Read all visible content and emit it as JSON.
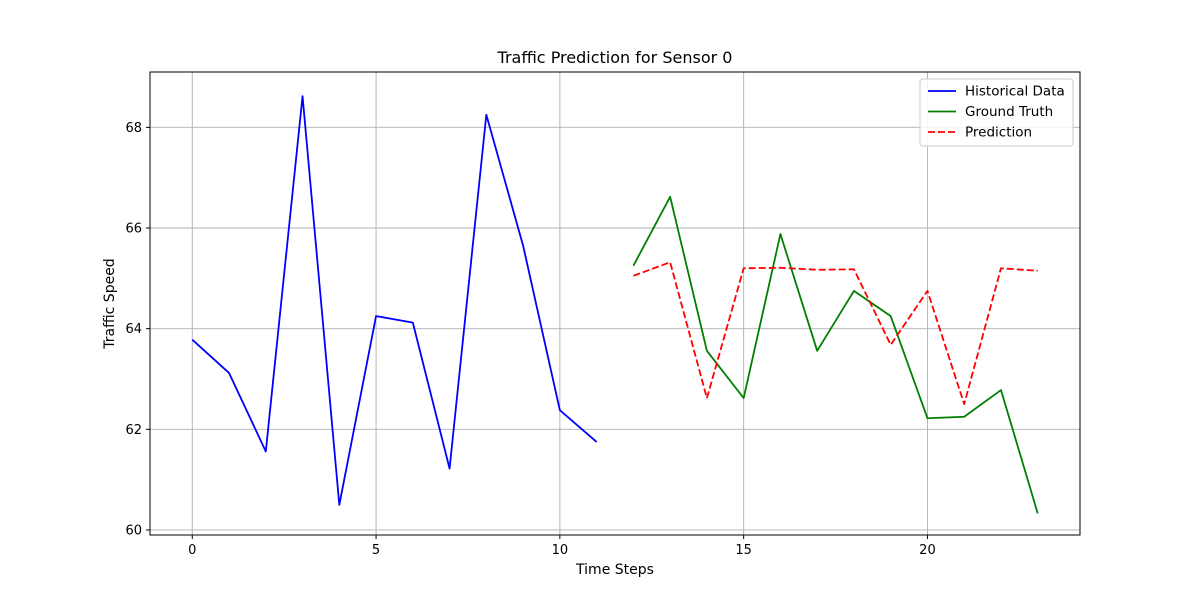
{
  "chart_data": {
    "type": "line",
    "title": "Traffic Prediction for Sensor 0",
    "xlabel": "Time Steps",
    "ylabel": "Traffic Speed",
    "xlim": [
      -1.15,
      24.15
    ],
    "ylim": [
      59.9,
      69.1
    ],
    "x_ticks": [
      0,
      5,
      10,
      15,
      20
    ],
    "y_ticks": [
      60,
      62,
      64,
      66,
      68
    ],
    "grid": true,
    "legend_position": "top-right",
    "series": [
      {
        "name": "Historical Data",
        "color": "#0000ff",
        "style": "solid",
        "x": [
          0,
          1,
          2,
          3,
          4,
          5,
          6,
          7,
          8,
          9,
          10,
          11
        ],
        "y": [
          63.78,
          63.12,
          61.56,
          68.62,
          60.5,
          64.25,
          64.12,
          61.22,
          68.25,
          65.65,
          62.38,
          61.75
        ]
      },
      {
        "name": "Ground Truth",
        "color": "#008000",
        "style": "solid",
        "x": [
          12,
          13,
          14,
          15,
          16,
          17,
          18,
          19,
          20,
          21,
          22,
          23
        ],
        "y": [
          65.25,
          66.62,
          63.56,
          62.62,
          65.88,
          63.56,
          64.75,
          64.25,
          62.22,
          62.25,
          62.78,
          60.33
        ]
      },
      {
        "name": "Prediction",
        "color": "#ff0000",
        "style": "dashed",
        "x": [
          12,
          13,
          14,
          15,
          16,
          17,
          18,
          19,
          20,
          21,
          22,
          23
        ],
        "y": [
          65.05,
          65.32,
          62.62,
          65.2,
          65.21,
          65.17,
          65.18,
          63.68,
          64.75,
          62.5,
          65.2,
          65.15
        ]
      }
    ]
  }
}
